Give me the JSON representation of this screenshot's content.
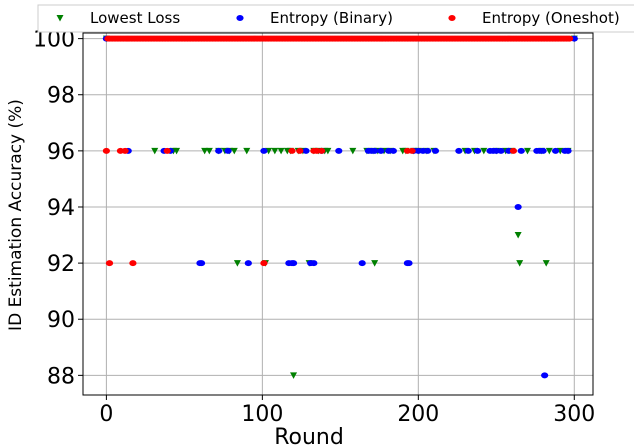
{
  "chart_data": {
    "type": "scatter",
    "xlabel": "Round",
    "ylabel": "ID Estimation Accuracy (%)",
    "xlim": [
      -15,
      312
    ],
    "ylim": [
      87.3,
      100.2
    ],
    "xticks": [
      0,
      100,
      200,
      300
    ],
    "yticks": [
      88,
      90,
      92,
      94,
      96,
      98,
      100
    ],
    "grid": true,
    "legend_position": "top",
    "series": [
      {
        "name": "Lowest Loss",
        "color": "#008000",
        "marker": "triangle-down",
        "points": [
          [
            0,
            100
          ],
          [
            31,
            96
          ],
          [
            43,
            96
          ],
          [
            45,
            96
          ],
          [
            63,
            96
          ],
          [
            66,
            96
          ],
          [
            72,
            96
          ],
          [
            76,
            96
          ],
          [
            79,
            96
          ],
          [
            82,
            96
          ],
          [
            90,
            96
          ],
          [
            84,
            92
          ],
          [
            102,
            92
          ],
          [
            104,
            96
          ],
          [
            108,
            96
          ],
          [
            112,
            96
          ],
          [
            116,
            96
          ],
          [
            118,
            96
          ],
          [
            123,
            96
          ],
          [
            126,
            96
          ],
          [
            130,
            92
          ],
          [
            120,
            88
          ],
          [
            133,
            96
          ],
          [
            136,
            96
          ],
          [
            140,
            96
          ],
          [
            142,
            96
          ],
          [
            158,
            96
          ],
          [
            167,
            96
          ],
          [
            171,
            96
          ],
          [
            174,
            96
          ],
          [
            178,
            96
          ],
          [
            172,
            92
          ],
          [
            182,
            96
          ],
          [
            190,
            96
          ],
          [
            192,
            96
          ],
          [
            197,
            96
          ],
          [
            200,
            96
          ],
          [
            205,
            96
          ],
          [
            210,
            96
          ],
          [
            230,
            96
          ],
          [
            236,
            96
          ],
          [
            242,
            96
          ],
          [
            250,
            96
          ],
          [
            256,
            96
          ],
          [
            260,
            96
          ],
          [
            264,
            93
          ],
          [
            265,
            92
          ],
          [
            270,
            96
          ],
          [
            279,
            96
          ],
          [
            282,
            92
          ],
          [
            284,
            96
          ],
          [
            291,
            96
          ],
          [
            296,
            96
          ],
          [
            300,
            100
          ]
        ]
      },
      {
        "name": "Entropy (Binary)",
        "color": "#0000ff",
        "marker": "circle",
        "points": [
          [
            0,
            100
          ],
          [
            14,
            96
          ],
          [
            37,
            96
          ],
          [
            41,
            96
          ],
          [
            60,
            92
          ],
          [
            61,
            92
          ],
          [
            72,
            96
          ],
          [
            78,
            96
          ],
          [
            91,
            92
          ],
          [
            101,
            96
          ],
          [
            117,
            92
          ],
          [
            119,
            92
          ],
          [
            120,
            92
          ],
          [
            128,
            96
          ],
          [
            131,
            92
          ],
          [
            133,
            92
          ],
          [
            138,
            96
          ],
          [
            149,
            96
          ],
          [
            164,
            92
          ],
          [
            168,
            96
          ],
          [
            170,
            96
          ],
          [
            172,
            96
          ],
          [
            176,
            96
          ],
          [
            181,
            96
          ],
          [
            184,
            96
          ],
          [
            193,
            92
          ],
          [
            194,
            92
          ],
          [
            197,
            96
          ],
          [
            200,
            96
          ],
          [
            203,
            96
          ],
          [
            206,
            96
          ],
          [
            211,
            96
          ],
          [
            226,
            96
          ],
          [
            232,
            96
          ],
          [
            238,
            96
          ],
          [
            246,
            96
          ],
          [
            248,
            96
          ],
          [
            250,
            96
          ],
          [
            253,
            96
          ],
          [
            258,
            96
          ],
          [
            264,
            94
          ],
          [
            266,
            96
          ],
          [
            276,
            96
          ],
          [
            278,
            96
          ],
          [
            280,
            96
          ],
          [
            281,
            88
          ],
          [
            288,
            96
          ],
          [
            294,
            96
          ],
          [
            296,
            96
          ],
          [
            300,
            100
          ]
        ]
      },
      {
        "name": "Entropy (Oneshot)",
        "color": "#ff0000",
        "marker": "circle",
        "points": [
          [
            0,
            96
          ],
          [
            2,
            92
          ],
          [
            9,
            96
          ],
          [
            12,
            96
          ],
          [
            17,
            92
          ],
          [
            39,
            96
          ],
          [
            101,
            92
          ],
          [
            119,
            96
          ],
          [
            124,
            96
          ],
          [
            133,
            96
          ],
          [
            135,
            96
          ],
          [
            138,
            96
          ],
          [
            193,
            96
          ],
          [
            196,
            96
          ],
          [
            261,
            96
          ]
        ],
        "continuous_y100_range": [
          1,
          297
        ]
      }
    ]
  }
}
